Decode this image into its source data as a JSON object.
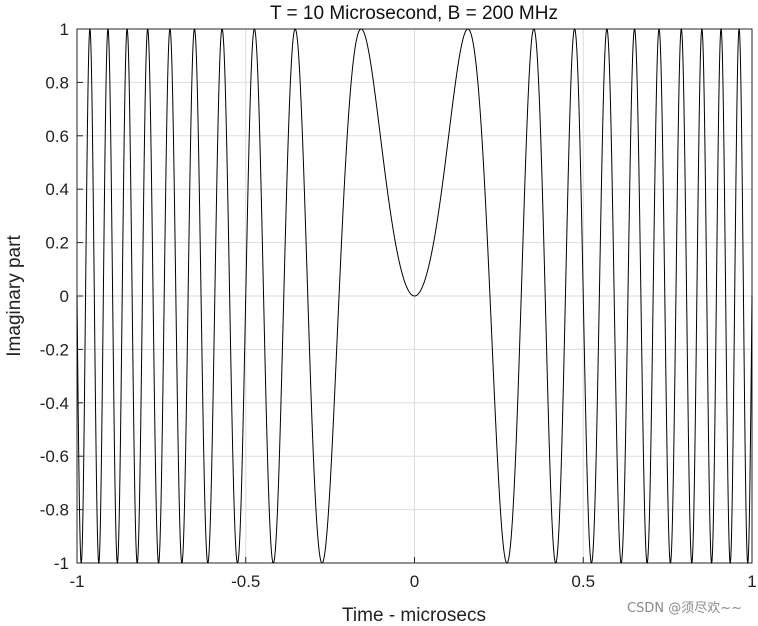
{
  "chart_data": {
    "type": "line",
    "title": "T = 10 Microsecond, B = 200 MHz",
    "xlabel": "Time - microsecs",
    "ylabel": "Imaginary part",
    "xlim": [
      -1,
      1
    ],
    "ylim": [
      -1,
      1
    ],
    "xticks": [
      "-1",
      "-0.5",
      "0",
      "0.5",
      "1"
    ],
    "yticks": [
      "-1",
      "-0.8",
      "-0.6",
      "-0.4",
      "-0.2",
      "0",
      "0.2",
      "0.4",
      "0.6",
      "0.8",
      "1"
    ],
    "grid": true,
    "series": [
      {
        "function": "y = sin(pi * (B/T) * t^2)",
        "B_MHz": 200,
        "T_microsec": 10,
        "t_range": [
          -1,
          1
        ],
        "color": "#000000"
      }
    ]
  },
  "watermark": "CSDN @须尽欢~~"
}
